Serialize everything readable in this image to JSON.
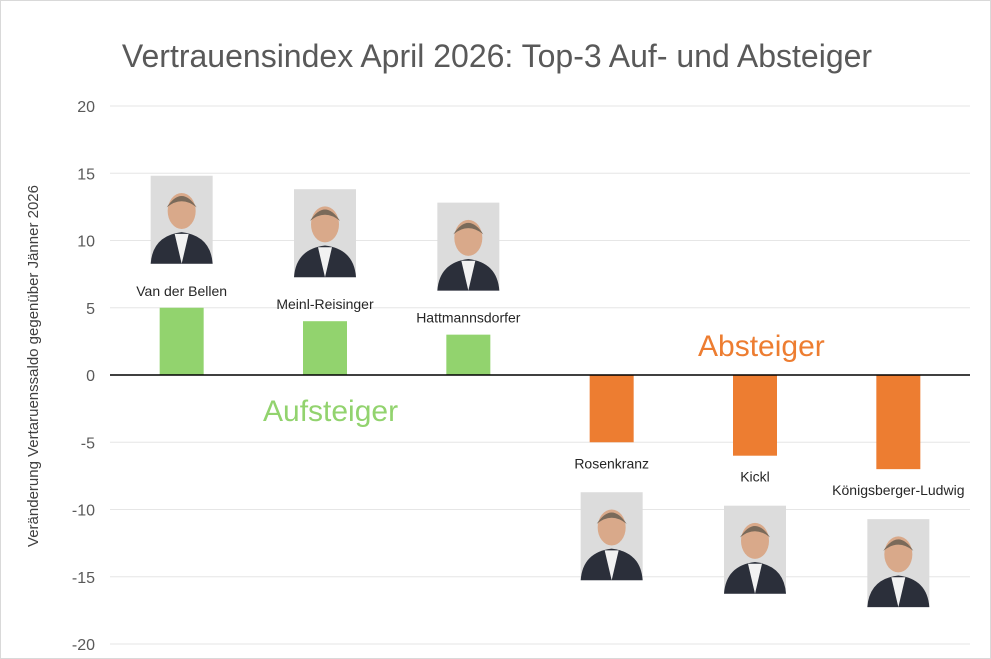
{
  "chart_data": {
    "type": "bar",
    "title": "Vertrauensindex April 2026: Top-3 Auf- und Absteiger",
    "xlabel": "",
    "ylabel": "Veränderung Vertaruenssaldo gegenüber Jänner 2026",
    "ylim": [
      -20,
      20
    ],
    "yticks": [
      20,
      15,
      10,
      5,
      0,
      -5,
      -10,
      -15,
      -20
    ],
    "grid": true,
    "categories": [
      "Van der Bellen",
      "Meinl-Reisinger",
      "Hattmannsdorfer",
      "Rosenkranz",
      "Kickl",
      "Königsberger-Ludwig"
    ],
    "values": [
      5,
      4,
      3,
      -5,
      -6,
      -7
    ],
    "annotations": [
      {
        "text": "Aufsteiger",
        "color": "#92d36e"
      },
      {
        "text": "Absteiger",
        "color": "#ed7d31"
      }
    ],
    "colors": {
      "positive": "#92d36e",
      "negative": "#ed7d31",
      "grid": "#e6e6e6",
      "text": "#595959"
    }
  }
}
